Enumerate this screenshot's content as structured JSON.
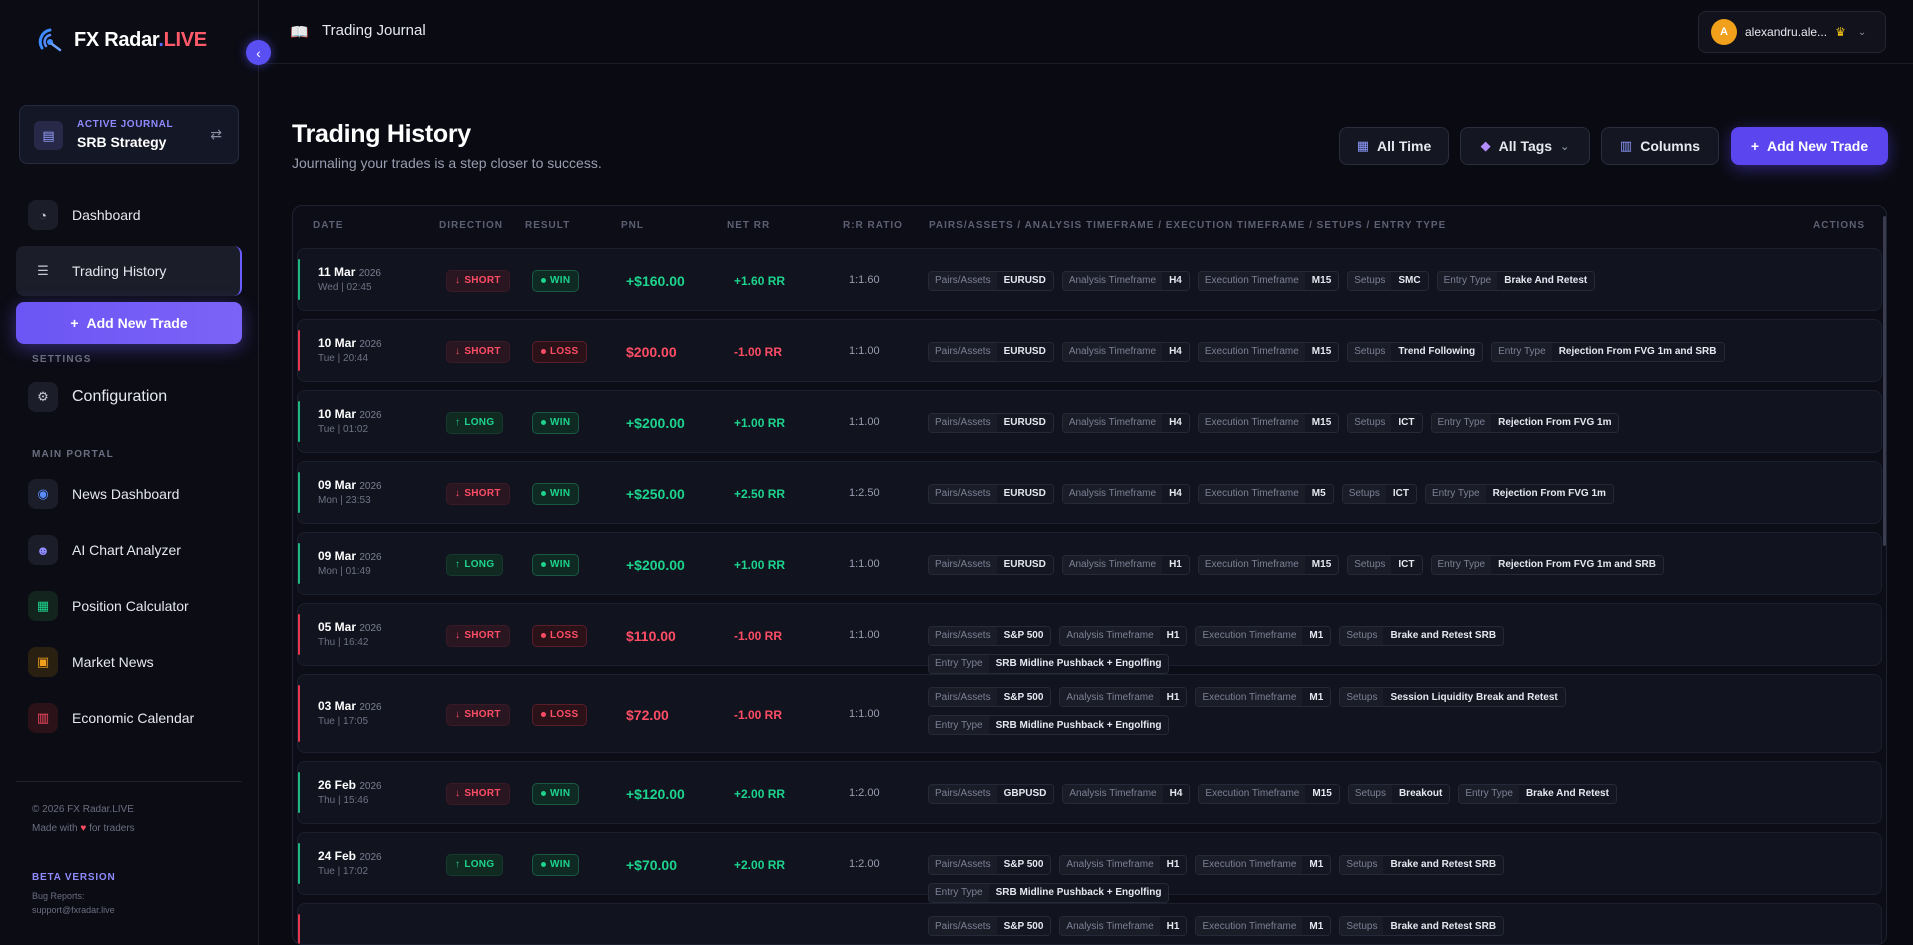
{
  "sidebar": {
    "logo_main": "FX Radar",
    "logo_dot": ".",
    "logo_live": "LIVE",
    "journal_label": "ACTIVE JOURNAL",
    "journal_name": "SRB Strategy",
    "nav": [
      {
        "label": "Dashboard",
        "icon": "pie-chart-icon"
      },
      {
        "label": "Trading History",
        "icon": "list-icon"
      }
    ],
    "add_trade_label": "Add New Trade",
    "settings_label": "SETTINGS",
    "configuration_label": "Configuration",
    "main_portal_label": "MAIN PORTAL",
    "portal": [
      {
        "label": "News Dashboard",
        "icon": "radar-icon"
      },
      {
        "label": "AI Chart Analyzer",
        "icon": "robot-icon"
      },
      {
        "label": "Position Calculator",
        "icon": "calculator-icon"
      },
      {
        "label": "Market News",
        "icon": "newspaper-icon"
      },
      {
        "label": "Economic Calendar",
        "icon": "calendar-icon"
      }
    ],
    "footer_copyright": "© 2026 FX Radar.LIVE",
    "footer_made_pre": "Made with",
    "footer_made_post": "for traders",
    "beta_label": "BETA VERSION",
    "bug_label": "Bug Reports:",
    "bug_email": "support@fxradar.live"
  },
  "topbar": {
    "page_title": "Trading Journal",
    "user_initial": "A",
    "user_name": "alexandru.ale..."
  },
  "header": {
    "title": "Trading History",
    "subtitle": "Journaling your trades is a step closer to success.",
    "all_time_label": "All Time",
    "all_tags_label": "All Tags",
    "columns_label": "Columns",
    "add_trade_label": "Add New Trade"
  },
  "table": {
    "columns": {
      "date": "DATE",
      "direction": "DIRECTION",
      "result": "RESULT",
      "pnl": "PNL",
      "net_rr": "NET RR",
      "rr_ratio": "R:R RATIO",
      "tags": "PAIRS/ASSETS / ANALYSIS TIMEFRAME / EXECUTION TIMEFRAME / SETUPS / ENTRY TYPE",
      "actions": "ACTIONS"
    },
    "rows": [
      {
        "date": "11 Mar",
        "year": "2026",
        "time": "Wed | 02:45",
        "direction": "SHORT",
        "result": "WIN",
        "pnl": "+$160.00",
        "net_rr": "+1.60 RR",
        "ratio": "1:1.60",
        "tags": [
          [
            "Pairs/Assets",
            "EURUSD"
          ],
          [
            "Analysis Timeframe",
            "H4"
          ],
          [
            "Execution Timeframe",
            "M15"
          ],
          [
            "Setups",
            "SMC"
          ],
          [
            "Entry Type",
            "Brake And Retest"
          ]
        ]
      },
      {
        "date": "10 Mar",
        "year": "2026",
        "time": "Tue | 20:44",
        "direction": "SHORT",
        "result": "LOSS",
        "pnl": "$200.00",
        "net_rr": "-1.00 RR",
        "ratio": "1:1.00",
        "tags": [
          [
            "Pairs/Assets",
            "EURUSD"
          ],
          [
            "Analysis Timeframe",
            "H4"
          ],
          [
            "Execution Timeframe",
            "M15"
          ],
          [
            "Setups",
            "Trend Following"
          ],
          [
            "Entry Type",
            "Rejection From FVG 1m and SRB"
          ]
        ]
      },
      {
        "date": "10 Mar",
        "year": "2026",
        "time": "Tue | 01:02",
        "direction": "LONG",
        "result": "WIN",
        "pnl": "+$200.00",
        "net_rr": "+1.00 RR",
        "ratio": "1:1.00",
        "tags": [
          [
            "Pairs/Assets",
            "EURUSD"
          ],
          [
            "Analysis Timeframe",
            "H4"
          ],
          [
            "Execution Timeframe",
            "M15"
          ],
          [
            "Setups",
            "ICT"
          ],
          [
            "Entry Type",
            "Rejection From FVG 1m"
          ]
        ]
      },
      {
        "date": "09 Mar",
        "year": "2026",
        "time": "Mon | 23:53",
        "direction": "SHORT",
        "result": "WIN",
        "pnl": "+$250.00",
        "net_rr": "+2.50 RR",
        "ratio": "1:2.50",
        "tags": [
          [
            "Pairs/Assets",
            "EURUSD"
          ],
          [
            "Analysis Timeframe",
            "H4"
          ],
          [
            "Execution Timeframe",
            "M5"
          ],
          [
            "Setups",
            "ICT"
          ],
          [
            "Entry Type",
            "Rejection From FVG 1m"
          ]
        ]
      },
      {
        "date": "09 Mar",
        "year": "2026",
        "time": "Mon | 01:49",
        "direction": "LONG",
        "result": "WIN",
        "pnl": "+$200.00",
        "net_rr": "+1.00 RR",
        "ratio": "1:1.00",
        "tags": [
          [
            "Pairs/Assets",
            "EURUSD"
          ],
          [
            "Analysis Timeframe",
            "H1"
          ],
          [
            "Execution Timeframe",
            "M15"
          ],
          [
            "Setups",
            "ICT"
          ],
          [
            "Entry Type",
            "Rejection From FVG 1m and SRB"
          ]
        ]
      },
      {
        "date": "05 Mar",
        "year": "2026",
        "time": "Thu | 16:42",
        "direction": "SHORT",
        "result": "LOSS",
        "pnl": "$110.00",
        "net_rr": "-1.00 RR",
        "ratio": "1:1.00",
        "tags": [
          [
            "Pairs/Assets",
            "S&P 500"
          ],
          [
            "Analysis Timeframe",
            "H1"
          ],
          [
            "Execution Timeframe",
            "M1"
          ],
          [
            "Setups",
            "Brake and Retest SRB"
          ],
          [
            "Entry Type",
            "SRB Midline Pushback + Engolfing"
          ]
        ]
      },
      {
        "date": "03 Mar",
        "year": "2026",
        "time": "Tue | 17:05",
        "direction": "SHORT",
        "result": "LOSS",
        "pnl": "$72.00",
        "net_rr": "-1.00 RR",
        "ratio": "1:1.00",
        "tags": [
          [
            "Pairs/Assets",
            "S&P 500"
          ],
          [
            "Analysis Timeframe",
            "H1"
          ],
          [
            "Execution Timeframe",
            "M1"
          ],
          [
            "Setups",
            "Session Liquidity Break and Retest"
          ],
          [
            "Entry Type",
            "SRB Midline Pushback + Engolfing"
          ]
        ]
      },
      {
        "date": "26 Feb",
        "year": "2026",
        "time": "Thu | 15:46",
        "direction": "SHORT",
        "result": "WIN",
        "pnl": "+$120.00",
        "net_rr": "+2.00 RR",
        "ratio": "1:2.00",
        "tags": [
          [
            "Pairs/Assets",
            "GBPUSD"
          ],
          [
            "Analysis Timeframe",
            "H4"
          ],
          [
            "Execution Timeframe",
            "M15"
          ],
          [
            "Setups",
            "Breakout"
          ],
          [
            "Entry Type",
            "Brake And Retest"
          ]
        ]
      },
      {
        "date": "24 Feb",
        "year": "2026",
        "time": "Tue | 17:02",
        "direction": "LONG",
        "result": "WIN",
        "pnl": "+$70.00",
        "net_rr": "+2.00 RR",
        "ratio": "1:2.00",
        "tags": [
          [
            "Pairs/Assets",
            "S&P 500"
          ],
          [
            "Analysis Timeframe",
            "H1"
          ],
          [
            "Execution Timeframe",
            "M1"
          ],
          [
            "Setups",
            "Brake and Retest SRB"
          ],
          [
            "Entry Type",
            "SRB Midline Pushback + Engolfing"
          ]
        ]
      },
      {
        "date": "",
        "year": "",
        "time": "",
        "direction": "",
        "result": "",
        "pnl": "",
        "net_rr": "",
        "ratio": "",
        "tags": [
          [
            "Pairs/Assets",
            "S&P 500"
          ],
          [
            "Analysis Timeframe",
            "H1"
          ],
          [
            "Execution Timeframe",
            "M1"
          ],
          [
            "Setups",
            "Brake and Retest SRB"
          ]
        ]
      }
    ]
  },
  "colors": {
    "accent": "#5b45ef",
    "win": "#1dd38d",
    "loss": "#ff4d66"
  }
}
